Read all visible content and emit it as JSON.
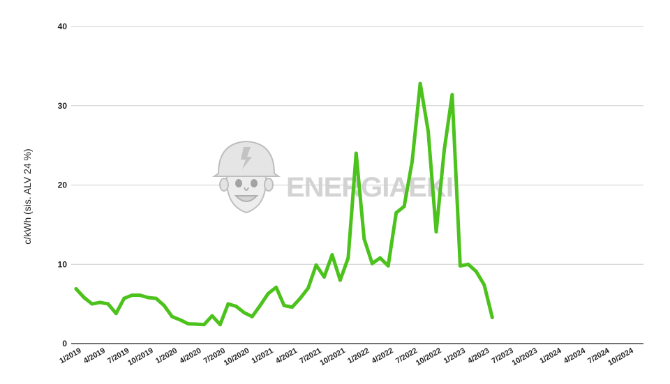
{
  "chart_data": {
    "type": "line",
    "ylabel": "c/kWh (sis. ALV 24 %)",
    "xlabel": "",
    "ylim": [
      0,
      40
    ],
    "yticks": [
      0,
      10,
      20,
      30,
      40
    ],
    "grid": true,
    "x_tick_labels": [
      "1/2019",
      "4/2019",
      "7/2019",
      "10/2019",
      "1/2020",
      "4/2020",
      "7/2020",
      "10/2020",
      "1/2021",
      "4/2021",
      "7/2021",
      "10/2021",
      "1/2022",
      "4/2022",
      "7/2022",
      "10/2022",
      "1/2023",
      "4/2023",
      "7/2023",
      "10/2023",
      "1/2024",
      "4/2024",
      "7/2024",
      "10/2024"
    ],
    "series": [
      {
        "color": "#4cc21c",
        "values": [
          6.9,
          5.8,
          5.0,
          5.2,
          5.0,
          3.8,
          5.7,
          6.1,
          6.1,
          5.8,
          5.7,
          4.8,
          3.4,
          3.0,
          2.5,
          2.45,
          2.4,
          3.5,
          2.4,
          5.0,
          4.7,
          3.9,
          3.4,
          4.8,
          6.3,
          7.1,
          4.8,
          4.6,
          5.7,
          7.0,
          9.9,
          8.4,
          11.2,
          8.0,
          10.8,
          24.0,
          13.2,
          10.1,
          10.8,
          9.8,
          16.5,
          17.3,
          23.0,
          32.8,
          26.8,
          14.1,
          24.4,
          31.4,
          9.8,
          10.0,
          9.1,
          7.4,
          3.3
        ]
      }
    ]
  },
  "watermark": {
    "brand_text": "ENERGIAEKI",
    "icon": "mascot-helmet-icon"
  }
}
